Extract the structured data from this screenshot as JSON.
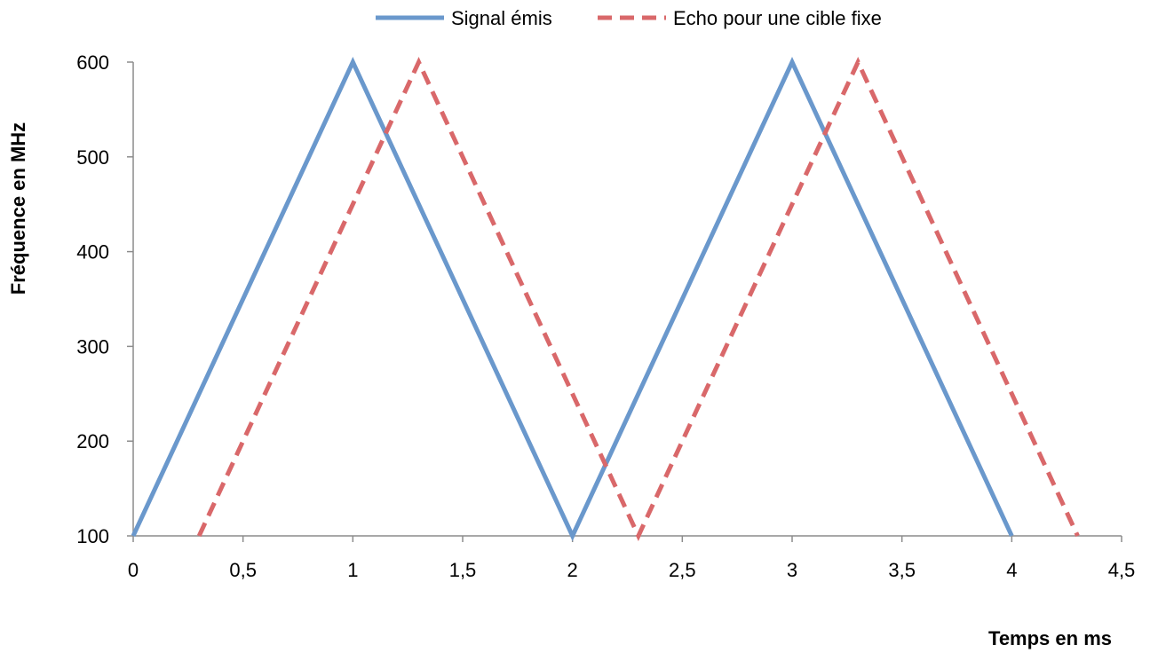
{
  "chart_data": {
    "type": "line",
    "title": "",
    "xlabel": "Temps en ms",
    "ylabel": "Fréquence en MHz",
    "xlim": [
      0,
      4.5
    ],
    "ylim": [
      100,
      600
    ],
    "x_ticks": [
      "0",
      "0,5",
      "1",
      "1,5",
      "2",
      "2,5",
      "3",
      "3,5",
      "4",
      "4,5"
    ],
    "x_tick_values": [
      0,
      0.5,
      1,
      1.5,
      2,
      2.5,
      3,
      3.5,
      4,
      4.5
    ],
    "y_ticks": [
      "100",
      "200",
      "300",
      "400",
      "500",
      "600"
    ],
    "y_tick_values": [
      100,
      200,
      300,
      400,
      500,
      600
    ],
    "grid": false,
    "legend_position": "top",
    "series": [
      {
        "name": "Signal émis",
        "style": "solid",
        "color": "#6a98cc",
        "points": [
          [
            0,
            100
          ],
          [
            1,
            600
          ],
          [
            2,
            100
          ],
          [
            3,
            600
          ],
          [
            4,
            100
          ]
        ]
      },
      {
        "name": "Echo pour une cible fixe",
        "style": "dashed",
        "color": "#d9686a",
        "points": [
          [
            0.3,
            100
          ],
          [
            1.3,
            600
          ],
          [
            2.3,
            100
          ],
          [
            3.3,
            600
          ],
          [
            4.3,
            100
          ]
        ]
      }
    ]
  }
}
